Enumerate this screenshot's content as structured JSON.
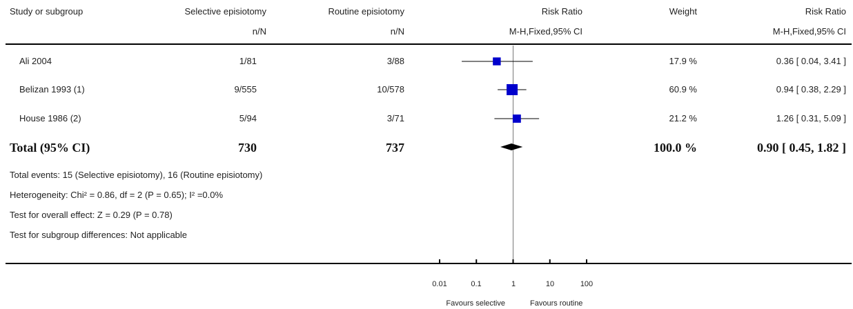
{
  "header": {
    "col1": "Study or subgroup",
    "col2": "Selective episiotomy",
    "col2_sub": "n/N",
    "col3": "Routine episiotomy",
    "col3_sub": "n/N",
    "col4": "Risk Ratio",
    "col4_sub": "M-H,Fixed,95% CI",
    "col5": "Weight",
    "col6": "Risk Ratio",
    "col6_sub": "M-H,Fixed,95% CI"
  },
  "rows": [
    {
      "study": "Ali 2004",
      "sel": "1/81",
      "rout": "3/88",
      "weight": "17.9 %",
      "rr": "0.36 [ 0.04, 3.41 ]"
    },
    {
      "study": "Belizan 1993 (1)",
      "sel": "9/555",
      "rout": "10/578",
      "weight": "60.9 %",
      "rr": "0.94 [ 0.38, 2.29 ]"
    },
    {
      "study": "House 1986 (2)",
      "sel": "5/94",
      "rout": "3/71",
      "weight": "21.2 %",
      "rr": "1.26 [ 0.31, 5.09 ]"
    }
  ],
  "total": {
    "label": "Total (95% CI)",
    "sel": "730",
    "rout": "737",
    "weight": "100.0 %",
    "rr": "0.90 [ 0.45, 1.82 ]"
  },
  "footer": {
    "events": "Total events: 15 (Selective episiotomy), 16 (Routine episiotomy)",
    "heterogeneity": "Heterogeneity: Chi² = 0.86, df = 2 (P = 0.65); I² =0.0%",
    "overall": "Test for overall effect: Z = 0.29 (P = 0.78)",
    "subgroup": "Test for subgroup differences: Not applicable"
  },
  "axis": {
    "ticks": [
      "0.01",
      "0.1",
      "1",
      "10",
      "100"
    ],
    "favours_left": "Favours selective",
    "favours_right": "Favours routine"
  },
  "chart_data": {
    "type": "forest",
    "scale": "log",
    "xlim": [
      0.01,
      100
    ],
    "tick_values": [
      0.01,
      0.1,
      1,
      10,
      100
    ],
    "null_line": 1,
    "marker_color": "#0000cc",
    "studies": [
      {
        "name": "Ali 2004",
        "rr": 0.36,
        "ci": [
          0.04,
          3.41
        ],
        "weight": 17.9
      },
      {
        "name": "Belizan 1993 (1)",
        "rr": 0.94,
        "ci": [
          0.38,
          2.29
        ],
        "weight": 60.9
      },
      {
        "name": "House 1986 (2)",
        "rr": 1.26,
        "ci": [
          0.31,
          5.09
        ],
        "weight": 21.2
      }
    ],
    "total": {
      "rr": 0.9,
      "ci": [
        0.45,
        1.82
      ]
    }
  }
}
